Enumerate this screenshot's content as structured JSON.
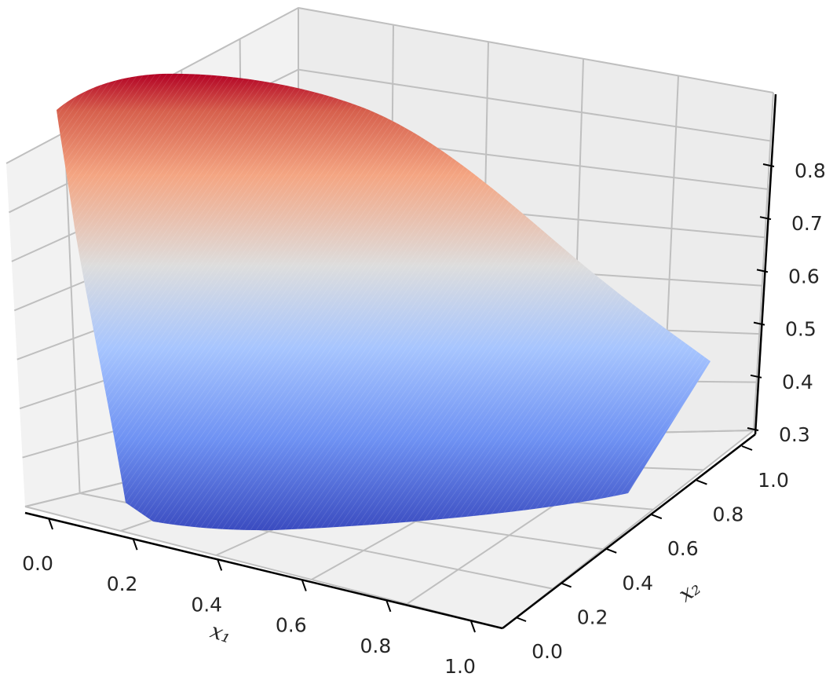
{
  "chart_data": {
    "type": "surface3d",
    "title": "",
    "colormap": "coolwarm",
    "colors": {
      "low": "#3b4cc0",
      "mid": "#dddddd",
      "high": "#b40426",
      "pane": "#f2f2f2",
      "grid": "#bfbfbf",
      "axis": "#000000"
    },
    "axes": {
      "x1": {
        "label": "x₁",
        "range": [
          0.0,
          1.0
        ],
        "ticks": [
          "0.0",
          "0.2",
          "0.4",
          "0.6",
          "0.8",
          "1.0"
        ]
      },
      "x2": {
        "label": "x₂",
        "range": [
          0.0,
          1.0
        ],
        "ticks": [
          "0.0",
          "0.2",
          "0.4",
          "0.6",
          "0.8",
          "1.0"
        ]
      },
      "z": {
        "label": "",
        "range": [
          0.3,
          0.85
        ],
        "ticks": [
          "0.3",
          "0.4",
          "0.5",
          "0.6",
          "0.7",
          "0.8"
        ]
      }
    },
    "grid": true,
    "surface": {
      "boundary_x1": [
        0.0,
        0.2,
        0.4,
        0.6,
        0.8,
        1.0
      ],
      "min_z_at_boundary": [
        0.33,
        0.3,
        0.3,
        0.31,
        0.33,
        0.36
      ],
      "max_z_at_corner": 0.85,
      "right_edge_z": 0.44
    }
  }
}
